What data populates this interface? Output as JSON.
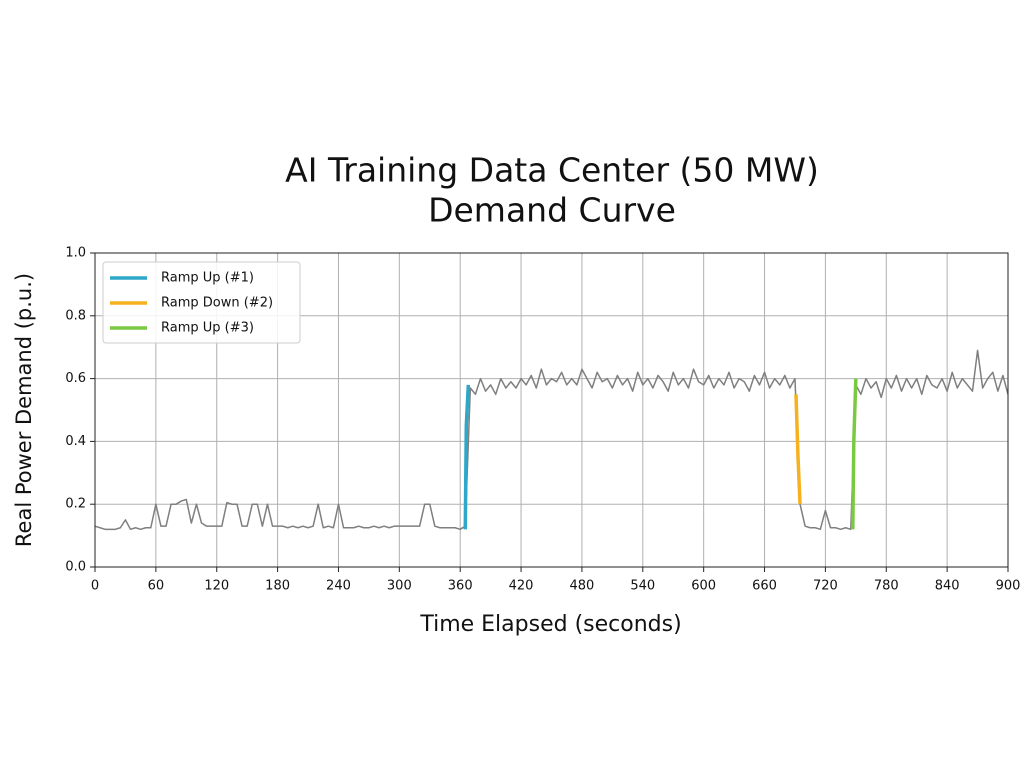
{
  "chart_data": {
    "type": "line",
    "title": [
      "AI Training Data Center (50 MW)",
      "Demand Curve"
    ],
    "x_label": "Time Elapsed (seconds)",
    "y_label": "Real Power Demand (p.u.)",
    "xlim": [
      0,
      900
    ],
    "xticks": [
      0,
      60,
      120,
      180,
      240,
      300,
      360,
      420,
      480,
      540,
      600,
      660,
      720,
      780,
      840,
      900
    ],
    "ylim": [
      0,
      1
    ],
    "yticks": [
      {
        "value": 0,
        "label": "0.0"
      },
      0.2,
      0.4,
      0.6,
      0.8,
      {
        "value": 1,
        "label": "1.0"
      }
    ],
    "grid": true,
    "legend": "upper-left",
    "series": [
      {
        "color": "#7f7f7f",
        "x": [
          0,
          5,
          10,
          15,
          20,
          25,
          30,
          35,
          40,
          45,
          50,
          55,
          60,
          65,
          70,
          75,
          80,
          85,
          90,
          95,
          100,
          105,
          110,
          115,
          120,
          125,
          130,
          135,
          140,
          145,
          150,
          155,
          160,
          165,
          170,
          175,
          180,
          185,
          190,
          195,
          200,
          205,
          210,
          215,
          220,
          225,
          230,
          235,
          240,
          245,
          250,
          255,
          260,
          265,
          270,
          275,
          280,
          285,
          290,
          295,
          300,
          305,
          310,
          315,
          320,
          325,
          330,
          335,
          340,
          345,
          350,
          355,
          360,
          365,
          370,
          375,
          380,
          385,
          390,
          395,
          400,
          405,
          410,
          415,
          420,
          425,
          430,
          435,
          440,
          445,
          450,
          455,
          460,
          465,
          470,
          475,
          480,
          485,
          490,
          495,
          500,
          505,
          510,
          515,
          520,
          525,
          530,
          535,
          540,
          545,
          550,
          555,
          560,
          565,
          570,
          575,
          580,
          585,
          590,
          595,
          600,
          605,
          610,
          615,
          620,
          625,
          630,
          635,
          640,
          645,
          650,
          655,
          660,
          665,
          670,
          675,
          680,
          685,
          690,
          695,
          700,
          705,
          710,
          715,
          720,
          725,
          730,
          735,
          740,
          745,
          750,
          755,
          760,
          765,
          770,
          775,
          780,
          785,
          790,
          795,
          800,
          805,
          810,
          815,
          820,
          825,
          830,
          835,
          840,
          845,
          850,
          855,
          860,
          865,
          870,
          875,
          880,
          885,
          890,
          895,
          900
        ],
        "values": [
          0.13,
          0.125,
          0.12,
          0.12,
          0.12,
          0.125,
          0.15,
          0.12,
          0.125,
          0.12,
          0.125,
          0.125,
          0.2,
          0.13,
          0.13,
          0.2,
          0.2,
          0.21,
          0.215,
          0.14,
          0.2,
          0.14,
          0.13,
          0.13,
          0.13,
          0.13,
          0.205,
          0.2,
          0.2,
          0.13,
          0.13,
          0.2,
          0.2,
          0.13,
          0.2,
          0.13,
          0.13,
          0.13,
          0.125,
          0.13,
          0.125,
          0.13,
          0.125,
          0.13,
          0.2,
          0.125,
          0.13,
          0.125,
          0.2,
          0.125,
          0.125,
          0.125,
          0.13,
          0.125,
          0.125,
          0.13,
          0.125,
          0.13,
          0.125,
          0.13,
          0.13,
          0.13,
          0.13,
          0.13,
          0.13,
          0.2,
          0.2,
          0.13,
          0.125,
          0.125,
          0.125,
          0.125,
          0.12,
          0.13,
          0.57,
          0.55,
          0.6,
          0.56,
          0.58,
          0.55,
          0.6,
          0.57,
          0.59,
          0.57,
          0.6,
          0.58,
          0.61,
          0.57,
          0.63,
          0.58,
          0.6,
          0.59,
          0.62,
          0.58,
          0.6,
          0.58,
          0.63,
          0.6,
          0.57,
          0.62,
          0.59,
          0.6,
          0.57,
          0.61,
          0.58,
          0.6,
          0.56,
          0.62,
          0.58,
          0.6,
          0.57,
          0.61,
          0.59,
          0.56,
          0.62,
          0.58,
          0.6,
          0.57,
          0.63,
          0.59,
          0.58,
          0.61,
          0.57,
          0.6,
          0.58,
          0.62,
          0.57,
          0.6,
          0.59,
          0.56,
          0.61,
          0.58,
          0.62,
          0.57,
          0.6,
          0.58,
          0.61,
          0.57,
          0.6,
          0.2,
          0.13,
          0.125,
          0.125,
          0.12,
          0.18,
          0.125,
          0.125,
          0.12,
          0.125,
          0.12,
          0.58,
          0.55,
          0.6,
          0.57,
          0.59,
          0.54,
          0.6,
          0.57,
          0.61,
          0.56,
          0.6,
          0.57,
          0.6,
          0.55,
          0.61,
          0.58,
          0.57,
          0.6,
          0.56,
          0.62,
          0.57,
          0.6,
          0.58,
          0.56,
          0.69,
          0.57,
          0.6,
          0.62,
          0.56,
          0.61,
          0.55
        ]
      },
      {
        "name": "Ramp Up (#1)",
        "color": "#2ea8c9",
        "x": [
          365,
          366,
          368
        ],
        "values": [
          0.12,
          0.45,
          0.58
        ]
      },
      {
        "name": "Ramp Down (#2)",
        "color": "#f5b21e",
        "x": [
          691,
          693,
          695
        ],
        "values": [
          0.55,
          0.35,
          0.2
        ]
      },
      {
        "name": "Ramp Up (#3)",
        "color": "#7ac943",
        "x": [
          747,
          748,
          750
        ],
        "values": [
          0.12,
          0.4,
          0.6
        ]
      }
    ]
  }
}
